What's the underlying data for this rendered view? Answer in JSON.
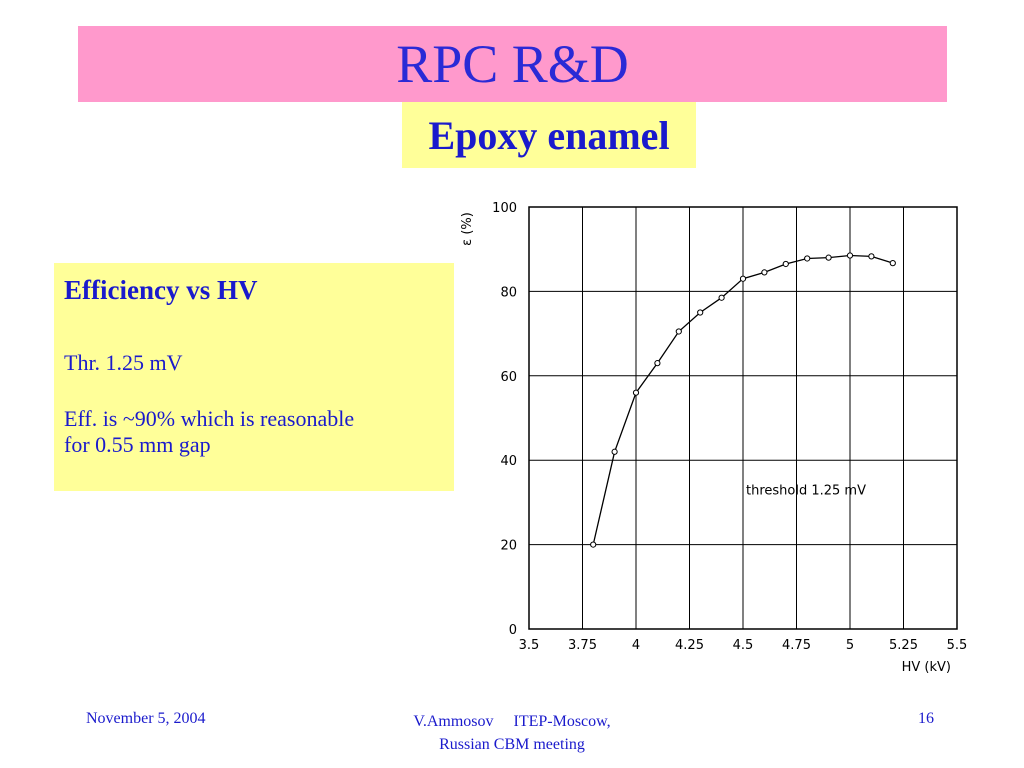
{
  "slide": {
    "title": "RPC R&D",
    "subtitle": "Epoxy enamel"
  },
  "info": {
    "heading": "Efficiency vs HV",
    "threshold_line": "Thr. 1.25 mV",
    "eff_line1": "Eff. is  ~90% which is reasonable",
    "eff_line2": "for 0.55 mm gap"
  },
  "footer": {
    "date": "November 5, 2004",
    "author_line": "V.Ammosov     ITEP-Moscow,",
    "meeting_line": "Russian CBM meeting",
    "page_number": "16"
  },
  "colors": {
    "title_bg": "#ff99cc",
    "highlight_bg": "#ffff99",
    "text_blue": "#1a1acc"
  },
  "chart_data": {
    "type": "line",
    "xlabel": "HV (kV)",
    "ylabel": "ε (%)",
    "annotation": "threshold 1.25 mV",
    "xlim": [
      3.5,
      5.5
    ],
    "ylim": [
      0,
      100
    ],
    "x_ticks": [
      "3.5",
      "3.75",
      "4",
      "4.25",
      "4.5",
      "4.75",
      "5",
      "5.25",
      "5.5"
    ],
    "y_ticks": [
      "0",
      "20",
      "40",
      "60",
      "80",
      "100"
    ],
    "grid": true,
    "series": [
      {
        "x": [
          3.8,
          3.9,
          4.0,
          4.1,
          4.2,
          4.3,
          4.4,
          4.5,
          4.6,
          4.7,
          4.8,
          4.9,
          5.0,
          5.1,
          5.2
        ],
        "y": [
          20,
          42,
          56,
          63,
          70.5,
          75,
          78.5,
          83,
          84.5,
          86.5,
          87.8,
          88,
          88.5,
          88.3,
          86.7
        ]
      }
    ]
  }
}
